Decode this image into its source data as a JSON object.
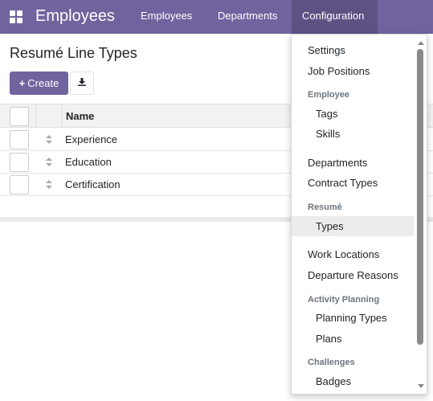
{
  "navbar": {
    "brand": "Employees",
    "items": [
      {
        "label": "Employees"
      },
      {
        "label": "Departments"
      },
      {
        "label": "Configuration"
      }
    ]
  },
  "control_panel": {
    "title": "Resumé Line Types",
    "create_label": "Create",
    "create_icon": "plus-icon",
    "download_icon": "download-icon"
  },
  "table": {
    "columns": [
      {
        "label": "Name"
      }
    ],
    "rows": [
      {
        "name": "Experience"
      },
      {
        "name": "Education"
      },
      {
        "name": "Certification"
      }
    ]
  },
  "config_menu": {
    "settings": "Settings",
    "job_positions": "Job Positions",
    "employee_header": "Employee",
    "tags": "Tags",
    "skills": "Skills",
    "departments": "Departments",
    "contract_types": "Contract Types",
    "resume_header": "Resumé",
    "types": "Types",
    "work_locations": "Work Locations",
    "departure_reasons": "Departure Reasons",
    "activity_planning_header": "Activity Planning",
    "planning_types": "Planning Types",
    "plans": "Plans",
    "challenges_header": "Challenges",
    "badges": "Badges"
  },
  "colors": {
    "brand": "#71639e",
    "nav_active": "#5e5184",
    "menu_active_bg": "#ececec"
  }
}
